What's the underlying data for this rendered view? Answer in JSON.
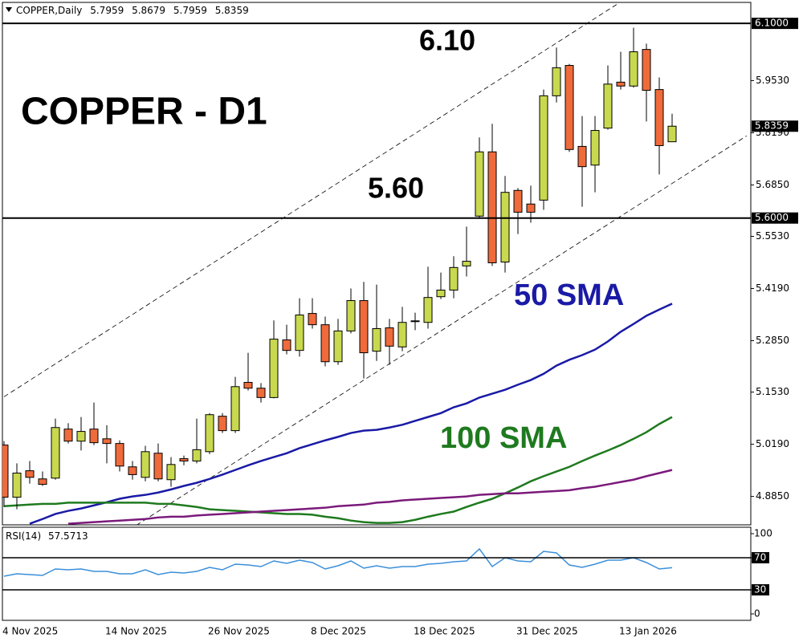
{
  "chart_data": [
    {
      "type": "candlestick",
      "symbol": "COPPER,Daily",
      "title": "COPPER - D1",
      "categories": [
        "4 Nov 2025",
        null,
        null,
        null,
        null,
        null,
        null,
        null,
        "14 Nov 2025",
        null,
        null,
        null,
        null,
        null,
        null,
        null,
        "26 Nov 2025",
        null,
        null,
        null,
        null,
        null,
        null,
        null,
        "8 Dec 2025",
        null,
        null,
        null,
        null,
        null,
        null,
        null,
        "18 Dec 2025",
        null,
        null,
        null,
        null,
        null,
        null,
        null,
        "31 Dec 2025",
        null,
        null,
        null,
        null,
        null,
        null,
        null,
        "13 Jan 2026",
        null,
        null,
        null,
        null
      ],
      "open": [
        5.017,
        4.883,
        4.951,
        4.93,
        4.932,
        5.058,
        5.027,
        5.058,
        5.033,
        5.021,
        4.961,
        4.934,
        4.996,
        4.928,
        4.982,
        4.976,
        5.0,
        5.091,
        5.054,
        5.178,
        5.163,
        5.139,
        5.287,
        5.26,
        5.355,
        5.326,
        5.231,
        5.31,
        5.388,
        5.258,
        5.318,
        5.269,
        5.334,
        5.332,
        5.398,
        5.415,
        5.477,
        5.605,
        5.77,
        5.487,
        5.671,
        5.636,
        5.646,
        5.914,
        5.992,
        5.784,
        5.736,
        5.831,
        5.949,
        5.939,
        6.033,
        5.93,
        5.7959
      ],
      "high": [
        5.027,
        4.97,
        4.976,
        4.949,
        5.085,
        5.073,
        5.089,
        5.126,
        5.068,
        5.029,
        4.976,
        5.015,
        5.021,
        4.986,
        4.99,
        5.085,
        5.099,
        5.099,
        5.192,
        5.254,
        5.176,
        5.337,
        5.326,
        5.394,
        5.394,
        5.347,
        5.341,
        5.419,
        5.436,
        5.429,
        5.341,
        5.372,
        5.357,
        5.475,
        5.46,
        5.502,
        5.578,
        5.807,
        5.842,
        5.708,
        5.677,
        5.683,
        5.93,
        6.038,
        5.996,
        5.862,
        5.862,
        5.992,
        6.027,
        6.089,
        6.048,
        5.961,
        5.8679
      ],
      "low": [
        4.858,
        4.852,
        4.918,
        4.912,
        4.928,
        5.021,
        5.003,
        5.017,
        4.97,
        4.949,
        4.928,
        4.924,
        4.924,
        4.91,
        4.965,
        4.97,
        4.994,
        5.048,
        5.048,
        5.157,
        5.126,
        5.137,
        5.25,
        5.244,
        5.316,
        5.219,
        5.223,
        5.304,
        5.188,
        5.233,
        5.223,
        5.258,
        5.312,
        5.316,
        5.392,
        5.394,
        5.45,
        5.598,
        5.477,
        5.46,
        5.559,
        5.588,
        5.621,
        5.897,
        5.77,
        5.629,
        5.666,
        5.827,
        5.93,
        5.935,
        5.848,
        5.712,
        5.7959
      ],
      "close": [
        4.883,
        4.945,
        4.934,
        4.916,
        5.062,
        5.027,
        5.052,
        5.023,
        5.021,
        4.963,
        4.941,
        5.0,
        4.93,
        4.967,
        4.976,
        5.005,
        5.095,
        5.054,
        5.167,
        5.163,
        5.139,
        5.289,
        5.26,
        5.351,
        5.326,
        5.231,
        5.31,
        5.388,
        5.254,
        5.316,
        5.271,
        5.332,
        5.336,
        5.396,
        5.415,
        5.473,
        5.489,
        5.77,
        5.485,
        5.666,
        5.615,
        5.615,
        5.914,
        5.986,
        5.776,
        5.732,
        5.825,
        5.944,
        5.939,
        6.027,
        5.928,
        5.786,
        5.8359
      ],
      "up_color": "#c8d94f",
      "down_color": "#ef6b3b",
      "series": [
        {
          "name": "50 SMA",
          "color": "#1a1aa6",
          "values": [
            null,
            null,
            4.815,
            4.827,
            4.84,
            4.848,
            4.854,
            4.862,
            4.87,
            4.879,
            4.885,
            4.889,
            4.895,
            4.903,
            4.912,
            4.92,
            4.93,
            4.941,
            4.953,
            4.965,
            4.976,
            4.986,
            4.996,
            5.009,
            5.019,
            5.029,
            5.038,
            5.048,
            5.054,
            5.056,
            5.062,
            5.069,
            5.079,
            5.089,
            5.099,
            5.114,
            5.124,
            5.139,
            5.149,
            5.159,
            5.172,
            5.184,
            5.2,
            5.221,
            5.236,
            5.248,
            5.262,
            5.283,
            5.308,
            5.328,
            5.349,
            5.365,
            5.38
          ]
        },
        {
          "name": "100 SMA",
          "color": "#1f7a1f",
          "values": [
            4.86,
            4.862,
            4.864,
            4.866,
            4.866,
            4.869,
            4.869,
            4.869,
            4.869,
            4.869,
            4.869,
            4.869,
            4.866,
            4.866,
            4.862,
            4.858,
            4.852,
            4.85,
            4.848,
            4.846,
            4.844,
            4.842,
            4.84,
            4.84,
            4.838,
            4.833,
            4.829,
            4.823,
            4.819,
            4.817,
            4.817,
            4.819,
            4.825,
            4.833,
            4.84,
            4.846,
            4.858,
            4.869,
            4.879,
            4.893,
            4.908,
            4.924,
            4.937,
            4.949,
            4.961,
            4.976,
            4.99,
            5.003,
            5.017,
            5.033,
            5.05,
            5.071,
            5.089
          ]
        },
        {
          "color": "#7b1a7b",
          "values": [
            null,
            null,
            null,
            null,
            null,
            4.815,
            4.817,
            4.819,
            4.821,
            4.823,
            4.825,
            4.827,
            4.831,
            4.833,
            4.833,
            4.836,
            4.838,
            4.84,
            4.842,
            4.844,
            4.846,
            4.848,
            4.85,
            4.852,
            4.854,
            4.856,
            4.86,
            4.862,
            4.864,
            4.869,
            4.871,
            4.875,
            4.877,
            4.879,
            4.881,
            4.883,
            4.885,
            4.889,
            4.891,
            4.893,
            4.893,
            4.895,
            4.897,
            4.899,
            4.901,
            4.906,
            4.91,
            4.916,
            4.922,
            4.928,
            4.937,
            4.945,
            4.953
          ]
        }
      ],
      "levels": [
        {
          "value": 6.1,
          "label": "6.10",
          "axis_label": "6.1000"
        },
        {
          "value": 5.6,
          "label": "5.60",
          "axis_label": "5.6000"
        }
      ],
      "channel": [
        {
          "x": [
            0,
            47.8
          ],
          "y": [
            5.141,
            6.151
          ]
        },
        {
          "x": [
            10.3,
            57.8
          ],
          "y": [
            4.811,
            5.811
          ]
        }
      ],
      "ylim": [
        4.81,
        6.16
      ],
      "yticks": [
        {
          "value": 4.885,
          "label": "4.8850"
        },
        {
          "value": 5.019,
          "label": "5.0190"
        },
        {
          "value": 5.153,
          "label": "5.1530"
        },
        {
          "value": 5.285,
          "label": "5.2850"
        },
        {
          "value": 5.419,
          "label": "5.4190"
        },
        {
          "value": 5.553,
          "label": "5.5530"
        },
        {
          "value": 5.685,
          "label": "5.6850"
        },
        {
          "value": 5.819,
          "label": "5.8190"
        },
        {
          "value": 5.953,
          "label": "5.9530"
        }
      ]
    },
    {
      "type": "line",
      "title": "RSI(14)",
      "series": [
        {
          "color": "#3b8fd9",
          "values": [
            47,
            50,
            49,
            48,
            56,
            55,
            56,
            53,
            53,
            50,
            50,
            55,
            49,
            52,
            51,
            53,
            58,
            55,
            62,
            61,
            59,
            66,
            63,
            67,
            64,
            56,
            60,
            66,
            57,
            60,
            57,
            59,
            59,
            62,
            63,
            65,
            66,
            81,
            59,
            70,
            66,
            65,
            78,
            76,
            61,
            58,
            62,
            67,
            67,
            70,
            64,
            56,
            57.5713
          ]
        }
      ],
      "ylim": [
        -8,
        108
      ],
      "yticks": [
        0,
        30,
        70,
        100
      ],
      "levels": [
        30,
        70
      ]
    }
  ]
}
